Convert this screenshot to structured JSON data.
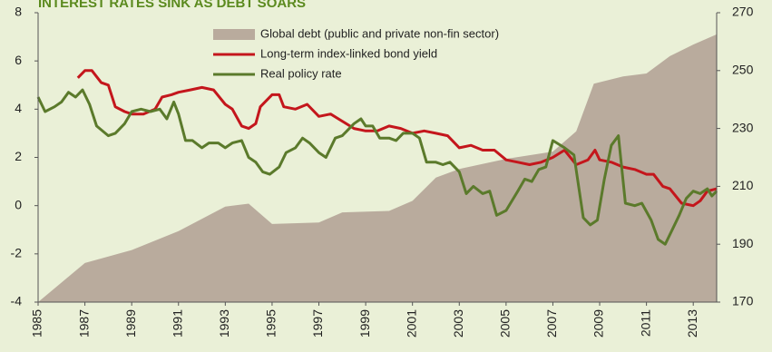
{
  "chart_data": {
    "type": "line",
    "title": "INTEREST RATES SINK AS DEBT SOARS",
    "xlim": [
      1985,
      2014
    ],
    "xticks": [
      1985,
      1987,
      1989,
      1991,
      1993,
      1995,
      1997,
      1999,
      2001,
      2003,
      2005,
      2007,
      2009,
      2011,
      2013
    ],
    "ylim": [
      -4,
      8
    ],
    "yticks": [
      -4,
      -2,
      0,
      2,
      4,
      6,
      8
    ],
    "y2lim": [
      170,
      270
    ],
    "y2ticks": [
      170,
      190,
      210,
      230,
      250,
      270
    ],
    "legend": "upper center",
    "grid": false,
    "series": [
      {
        "name": "Global debt (public and private non-fin sector)",
        "color": "#b9ab9d",
        "kind": "area",
        "axis": "y2",
        "x": [
          1985,
          1987,
          1989,
          1991,
          1993,
          1994,
          1995,
          1997,
          1998,
          2000,
          2001,
          2002,
          2003,
          2005,
          2007,
          2008,
          2008.75,
          2010,
          2011,
          2012,
          2013,
          2014
        ],
        "values": [
          170,
          183.5,
          188,
          194.5,
          203,
          204,
          197,
          197.5,
          201,
          201.5,
          205,
          213,
          216,
          219.5,
          222,
          229,
          245.5,
          248,
          249,
          255,
          259,
          262.5
        ]
      },
      {
        "name": "Long-term index-linked bond yield",
        "color": "#c4161c",
        "kind": "line",
        "x": [
          1986.7,
          1987,
          1987.3,
          1987.7,
          1988,
          1988.3,
          1988.7,
          1989,
          1989.5,
          1990,
          1990.3,
          1990.7,
          1991,
          1991.5,
          1992,
          1992.5,
          1993,
          1993.3,
          1993.7,
          1994,
          1994.3,
          1994.5,
          1995,
          1995.3,
          1995.5,
          1996,
          1996.5,
          1997,
          1997.5,
          1998,
          1998.5,
          1999,
          1999.5,
          2000,
          2000.5,
          2001,
          2001.5,
          2002,
          2002.5,
          2003,
          2003.5,
          2004,
          2004.5,
          2005,
          2005.5,
          2006,
          2006.5,
          2007,
          2007.5,
          2008,
          2008.5,
          2008.8,
          2009,
          2009.5,
          2010,
          2010.5,
          2011,
          2011.3,
          2011.7,
          2012,
          2012.5,
          2013,
          2013.3,
          2013.6,
          2014
        ],
        "values": [
          5.3,
          5.6,
          5.6,
          5.1,
          5.0,
          4.1,
          3.9,
          3.8,
          3.8,
          4.0,
          4.5,
          4.6,
          4.7,
          4.8,
          4.9,
          4.8,
          4.2,
          4.0,
          3.3,
          3.2,
          3.4,
          4.1,
          4.6,
          4.6,
          4.1,
          4.0,
          4.2,
          3.7,
          3.8,
          3.5,
          3.2,
          3.1,
          3.1,
          3.3,
          3.2,
          3.0,
          3.1,
          3.0,
          2.9,
          2.4,
          2.5,
          2.3,
          2.3,
          1.9,
          1.8,
          1.7,
          1.8,
          2.0,
          2.3,
          1.7,
          1.9,
          2.3,
          1.9,
          1.8,
          1.6,
          1.5,
          1.3,
          1.3,
          0.8,
          0.7,
          0.1,
          0.0,
          0.2,
          0.6,
          0.7
        ]
      },
      {
        "name": "Real policy rate",
        "color": "#5b7a2b",
        "kind": "line",
        "x": [
          1985,
          1985.3,
          1985.7,
          1986,
          1986.3,
          1986.6,
          1986.9,
          1987.2,
          1987.5,
          1988,
          1988.3,
          1988.7,
          1989,
          1989.4,
          1989.8,
          1990.2,
          1990.5,
          1990.8,
          1991,
          1991.3,
          1991.6,
          1992,
          1992.3,
          1992.7,
          1993,
          1993.3,
          1993.7,
          1994,
          1994.3,
          1994.6,
          1994.9,
          1995.3,
          1995.6,
          1996,
          1996.3,
          1996.6,
          1997,
          1997.3,
          1997.7,
          1998,
          1998.5,
          1998.8,
          1999,
          1999.3,
          1999.6,
          2000,
          2000.3,
          2000.6,
          2001,
          2001.3,
          2001.6,
          2002,
          2002.3,
          2002.6,
          2003,
          2003.3,
          2003.6,
          2004,
          2004.3,
          2004.6,
          2005,
          2005.5,
          2005.8,
          2006.1,
          2006.4,
          2006.7,
          2007,
          2007.5,
          2007.9,
          2008.3,
          2008.6,
          2008.9,
          2009.2,
          2009.5,
          2009.8,
          2010.1,
          2010.5,
          2010.8,
          2011.2,
          2011.5,
          2011.8,
          2012.1,
          2012.4,
          2012.7,
          2013,
          2013.3,
          2013.6,
          2013.8,
          2014
        ],
        "values": [
          4.5,
          3.9,
          4.1,
          4.3,
          4.7,
          4.5,
          4.8,
          4.2,
          3.3,
          2.9,
          3.0,
          3.4,
          3.9,
          4.0,
          3.9,
          4.0,
          3.6,
          4.3,
          3.8,
          2.7,
          2.7,
          2.4,
          2.6,
          2.6,
          2.4,
          2.6,
          2.7,
          2.0,
          1.8,
          1.4,
          1.3,
          1.6,
          2.2,
          2.4,
          2.8,
          2.6,
          2.2,
          2.0,
          2.8,
          2.9,
          3.4,
          3.6,
          3.3,
          3.3,
          2.8,
          2.8,
          2.7,
          3.0,
          3.0,
          2.8,
          1.8,
          1.8,
          1.7,
          1.8,
          1.4,
          0.5,
          0.8,
          0.5,
          0.6,
          -0.4,
          -0.2,
          0.6,
          1.1,
          1.0,
          1.5,
          1.6,
          2.7,
          2.4,
          2.1,
          -0.5,
          -0.8,
          -0.6,
          1.1,
          2.5,
          2.9,
          0.1,
          0.0,
          0.1,
          -0.6,
          -1.4,
          -1.6,
          -1.0,
          -0.4,
          0.3,
          0.6,
          0.5,
          0.7,
          0.4,
          0.6
        ]
      }
    ]
  }
}
